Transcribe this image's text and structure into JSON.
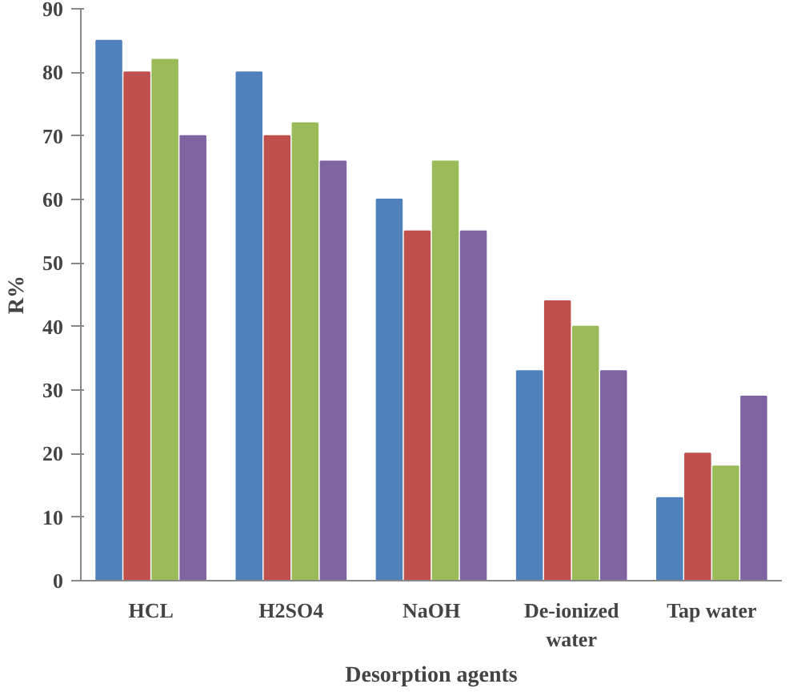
{
  "chart_data": {
    "type": "bar",
    "xlabel": "Desorption agents",
    "ylabel": "R%",
    "categories": [
      "HCL",
      "H2SO4",
      "NaOH",
      "De-ionized\nwater",
      "Tap water"
    ],
    "series": [
      {
        "color": "#4f81bd",
        "values": [
          85,
          80,
          60,
          33,
          13
        ]
      },
      {
        "color": "#c0504d",
        "values": [
          80,
          70,
          55,
          44,
          20
        ]
      },
      {
        "color": "#9bbb59",
        "values": [
          82,
          72,
          66,
          40,
          18
        ]
      },
      {
        "color": "#8064a2",
        "values": [
          70,
          66,
          55,
          33,
          29
        ]
      }
    ],
    "ylim": [
      0,
      90
    ],
    "yticks": [
      0,
      10,
      20,
      30,
      40,
      50,
      60,
      70,
      80,
      90
    ]
  }
}
